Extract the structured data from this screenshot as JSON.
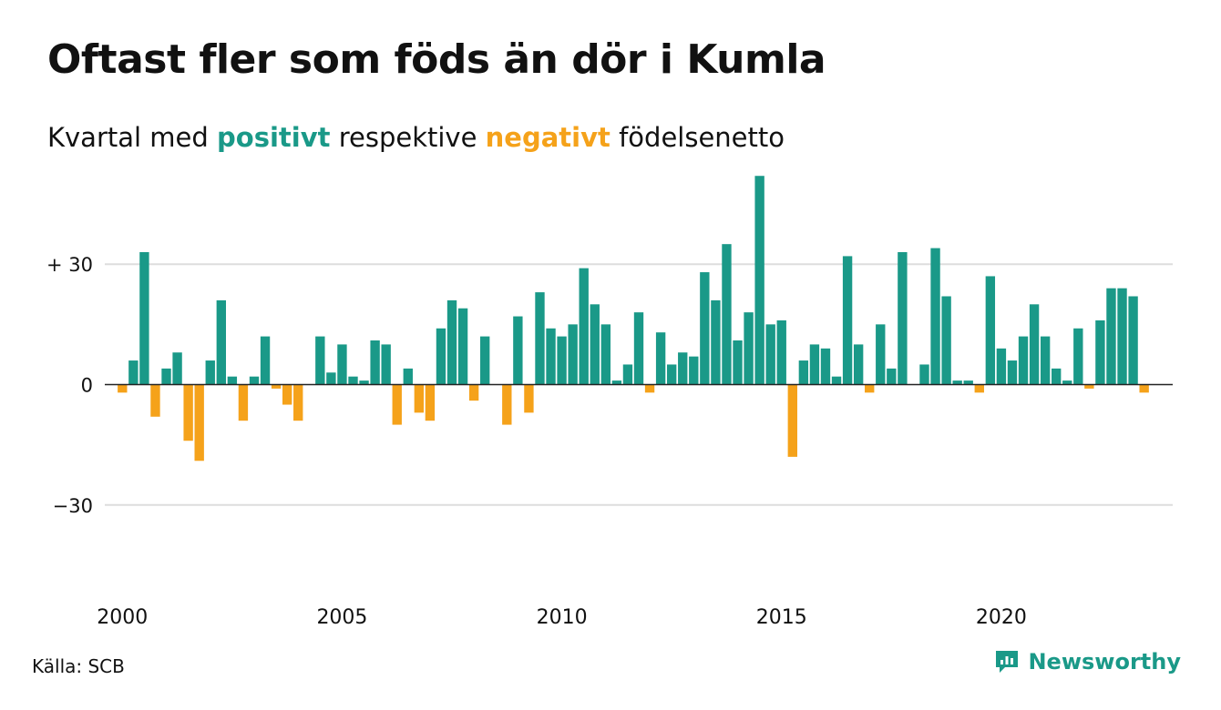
{
  "header": {
    "title": "Oftast fler som föds än dör i Kumla",
    "subtitle_start": "Kvartal med ",
    "subtitle_pos": "positivt",
    "subtitle_mid": " respektive ",
    "subtitle_neg": "negativt",
    "subtitle_end": " födelsenetto"
  },
  "footer": {
    "source": "Källa: SCB",
    "brand": "Newsworthy"
  },
  "colors": {
    "positive": "#1a9988",
    "negative": "#f5a21a",
    "grid": "#dddddd",
    "zero_line": "#222222"
  },
  "chart_data": {
    "type": "bar",
    "x_start": 2000.0,
    "x_step": 0.25,
    "values": [
      -2,
      6,
      33,
      -8,
      4,
      8,
      -14,
      -19,
      6,
      21,
      2,
      -9,
      2,
      12,
      -1,
      -5,
      -9,
      0,
      12,
      3,
      10,
      2,
      1,
      11,
      10,
      -10,
      4,
      -7,
      -9,
      14,
      21,
      19,
      -4,
      12,
      0,
      -10,
      17,
      -7,
      23,
      14,
      12,
      15,
      29,
      20,
      15,
      1,
      5,
      18,
      -2,
      13,
      5,
      8,
      7,
      28,
      21,
      35,
      11,
      18,
      52,
      15,
      16,
      -18,
      6,
      10,
      9,
      2,
      32,
      10,
      -2,
      15,
      4,
      33,
      0,
      5,
      34,
      22,
      1,
      1,
      -2,
      27,
      9,
      6,
      12,
      20,
      12,
      4,
      1,
      14,
      -1,
      16,
      24,
      24,
      22,
      -2
    ],
    "xlim": [
      1999.6,
      2023.9
    ],
    "ylim": [
      -55,
      55
    ],
    "yticks": [
      30,
      0,
      -30
    ],
    "ytick_labels": [
      "+ 30",
      "0",
      "−30"
    ],
    "xticks": [
      2000,
      2005,
      2010,
      2015,
      2020
    ],
    "xtick_labels": [
      "2000",
      "2005",
      "2010",
      "2015",
      "2020"
    ],
    "grid": true
  }
}
